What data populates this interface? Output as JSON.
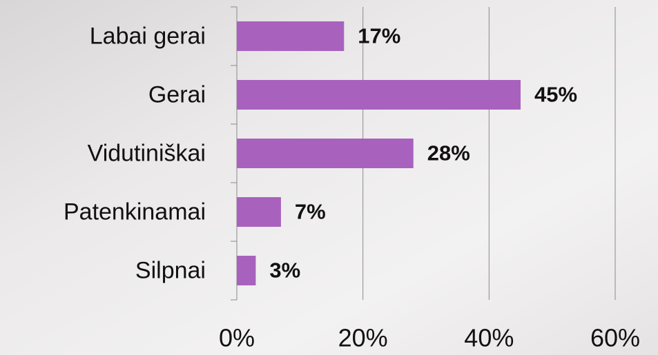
{
  "chart_data": {
    "type": "barh",
    "categories": [
      "Labai gerai",
      "Gerai",
      "Vidutiniškai",
      "Patenkinamai",
      "Silpnai"
    ],
    "values": [
      17,
      45,
      28,
      7,
      3
    ],
    "value_labels": [
      "17%",
      "45%",
      "28%",
      "7%",
      "3%"
    ],
    "color": "#a862be",
    "xlim": [
      0,
      60
    ],
    "xticks": [
      {
        "value": 0,
        "label": "0%"
      },
      {
        "value": 20,
        "label": "20%"
      },
      {
        "value": 40,
        "label": "40%"
      },
      {
        "value": 60,
        "label": "60%"
      }
    ],
    "grid": true
  }
}
